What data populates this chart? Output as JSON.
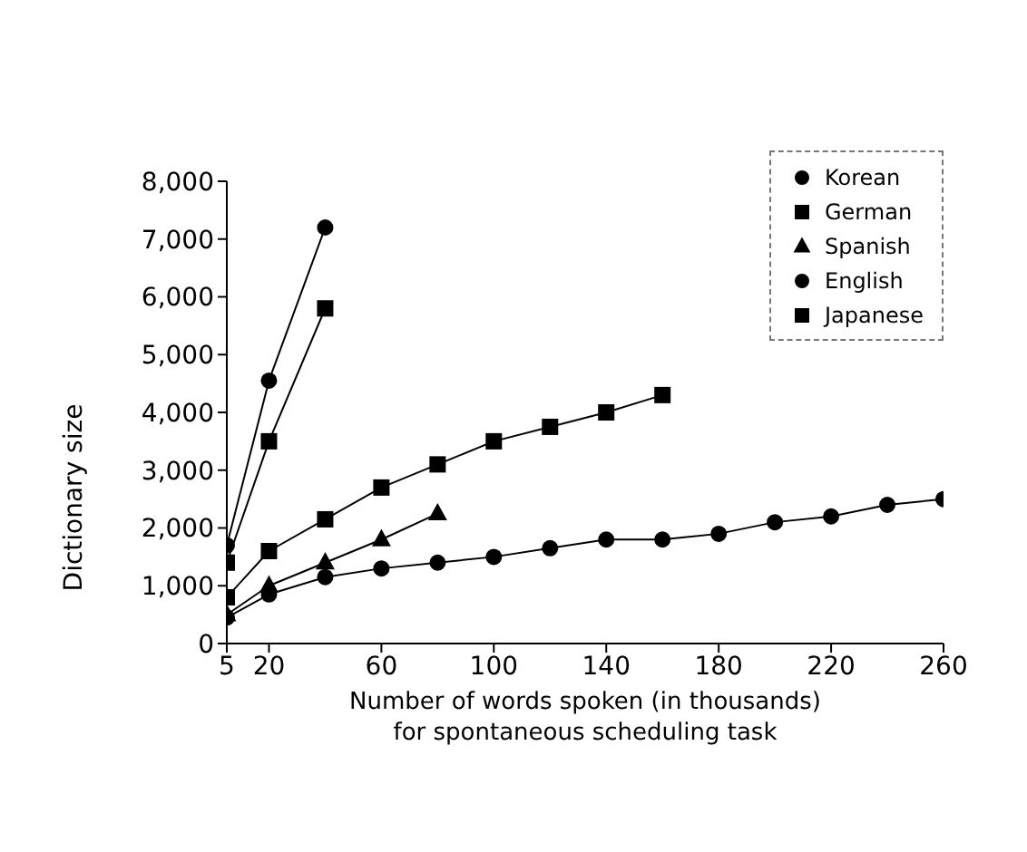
{
  "chart_data": {
    "type": "line",
    "xlabel": "Number of words spoken (in thousands)\nfor spontaneous scheduling task",
    "ylabel": "Dictionary size",
    "xlim": [
      5,
      260
    ],
    "xticks": [
      5,
      20,
      60,
      100,
      140,
      180,
      220,
      260
    ],
    "ylim": [
      0,
      8000
    ],
    "yticks": [
      {
        "value": 0,
        "label": "0"
      },
      {
        "value": 1000,
        "label": "1,000"
      },
      {
        "value": 2000,
        "label": "2,000"
      },
      {
        "value": 3000,
        "label": "3,000"
      },
      {
        "value": 4000,
        "label": "4,000"
      },
      {
        "value": 5000,
        "label": "5,000"
      },
      {
        "value": 6000,
        "label": "6,000"
      },
      {
        "value": 7000,
        "label": "7,000"
      },
      {
        "value": 8000,
        "label": "8,000"
      }
    ],
    "legend": "top right",
    "series": [
      {
        "name": "Korean",
        "color": "#000000",
        "marker": "circle",
        "x": [
          5,
          20,
          40
        ],
        "values": [
          1700,
          4550,
          7200
        ]
      },
      {
        "name": "German",
        "color": "#000000",
        "marker": "square",
        "x": [
          5,
          20,
          40,
          60,
          80,
          100,
          120,
          140,
          160
        ],
        "values": [
          800,
          1600,
          2150,
          2700,
          3100,
          3500,
          3750,
          4000,
          4300
        ]
      },
      {
        "name": "Spanish",
        "color": "#000000",
        "marker": "triangle",
        "x": [
          5,
          20,
          40,
          60,
          80
        ],
        "values": [
          500,
          1000,
          1400,
          1800,
          2250
        ]
      },
      {
        "name": "English",
        "color": "#000000",
        "marker": "circle",
        "x": [
          5,
          20,
          40,
          60,
          80,
          100,
          120,
          140,
          160,
          180,
          200,
          220,
          240,
          260
        ],
        "values": [
          450,
          850,
          1150,
          1300,
          1400,
          1500,
          1650,
          1800,
          1800,
          1900,
          2100,
          2200,
          2400,
          2500
        ]
      },
      {
        "name": "Japanese",
        "color": "#000000",
        "marker": "square",
        "x": [
          5,
          20,
          40
        ],
        "values": [
          1400,
          3500,
          5800
        ]
      }
    ]
  }
}
